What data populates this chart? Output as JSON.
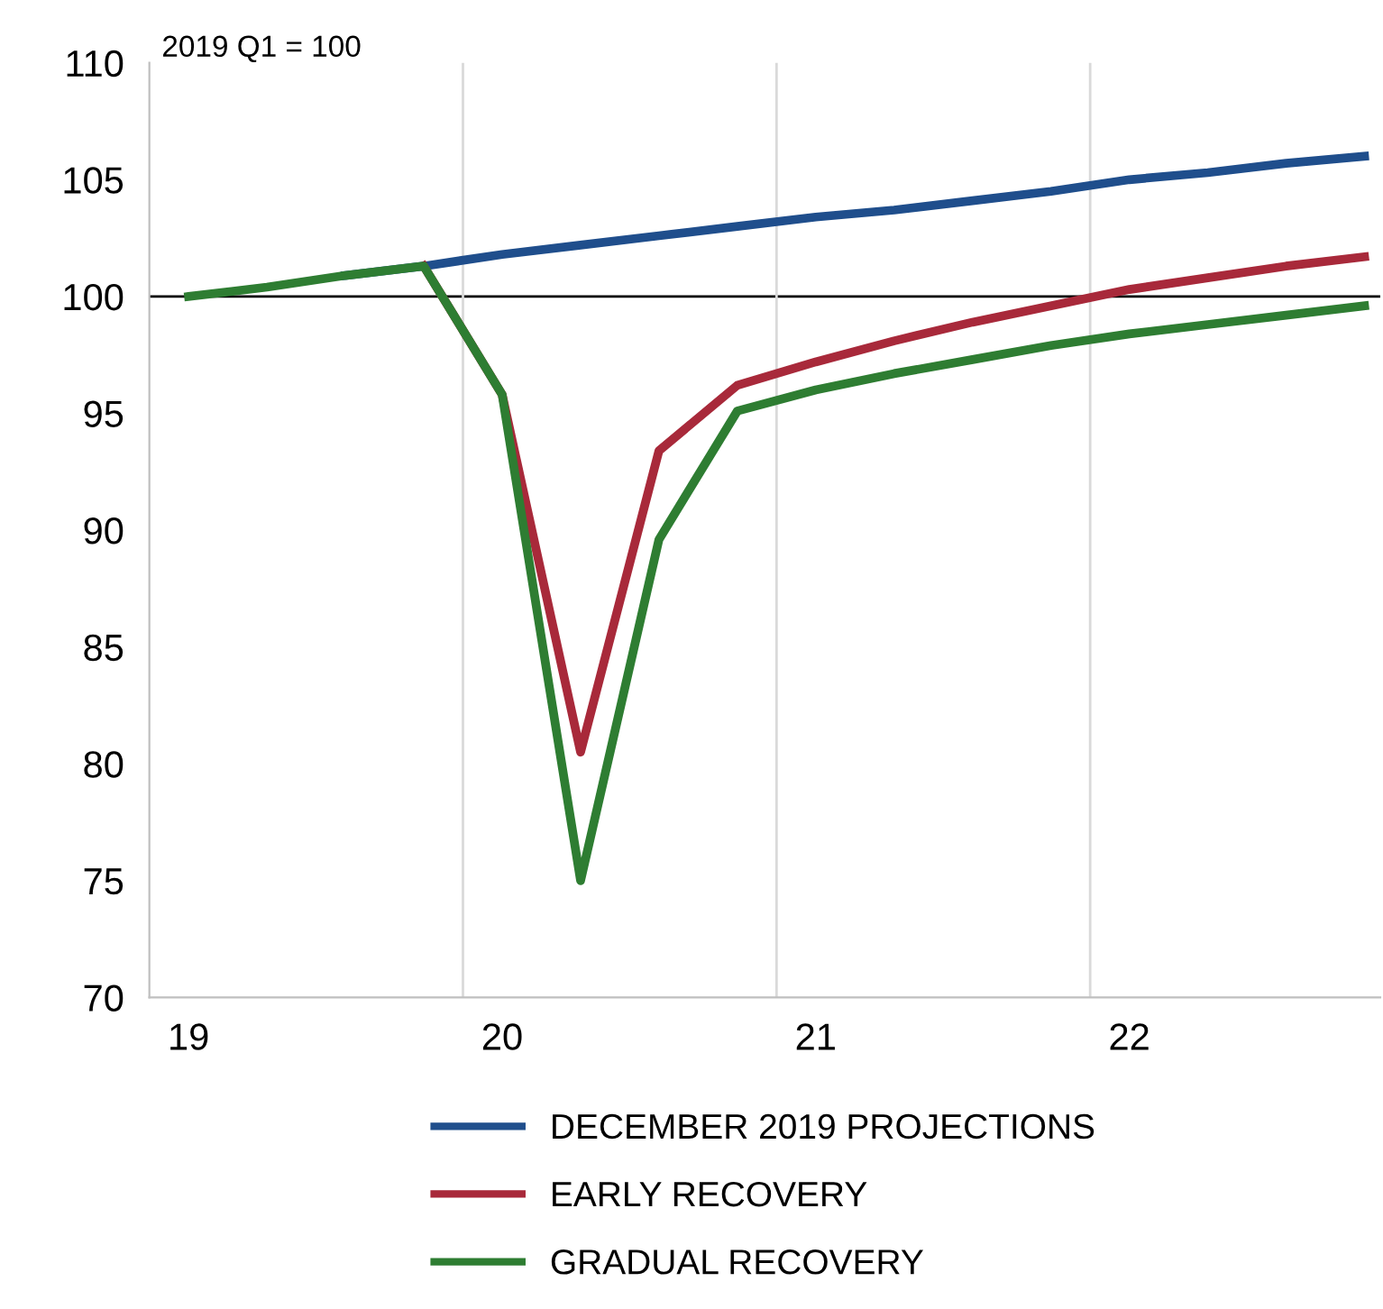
{
  "chart_data": {
    "type": "line",
    "x": [
      19.0,
      19.25,
      19.5,
      19.75,
      20.0,
      20.25,
      20.5,
      20.75,
      21.0,
      21.25,
      21.5,
      21.75,
      22.0,
      22.25,
      22.5,
      22.75
    ],
    "series": [
      {
        "name": "DECEMBER 2019 PROJECTIONS",
        "color": "#1f4e8c",
        "values": [
          null,
          null,
          100.9,
          101.3,
          101.8,
          102.2,
          102.6,
          103.0,
          103.4,
          103.7,
          104.1,
          104.5,
          105.0,
          105.3,
          105.7,
          106.0
        ]
      },
      {
        "name": "EARLY RECOVERY",
        "color": "#a8293a",
        "values": [
          null,
          null,
          null,
          101.3,
          95.8,
          80.5,
          93.4,
          96.2,
          97.2,
          98.1,
          98.9,
          99.6,
          100.3,
          100.8,
          101.3,
          101.7
        ]
      },
      {
        "name": "GRADUAL RECOVERY",
        "color": "#2e7d32",
        "values": [
          100,
          100.4,
          100.9,
          101.3,
          95.8,
          75.0,
          89.6,
          95.1,
          96.0,
          96.7,
          97.3,
          97.9,
          98.4,
          98.8,
          99.2,
          99.6
        ]
      }
    ],
    "xlim": [
      18.875,
      22.8
    ],
    "xticks": [
      19,
      20,
      21,
      22
    ],
    "ylim": [
      70,
      110
    ],
    "yticks": [
      70,
      75,
      80,
      85,
      90,
      95,
      100,
      105,
      110
    ],
    "ref_lines": [
      {
        "axis": "y",
        "value": 100,
        "color": "#000000"
      },
      {
        "axis": "x",
        "value": 19.875,
        "color": "#d9d9d9"
      },
      {
        "axis": "x",
        "value": 20.875,
        "color": "#d9d9d9"
      },
      {
        "axis": "x",
        "value": 21.875,
        "color": "#d9d9d9"
      }
    ],
    "annotations": [
      "2019 Q1 = 100"
    ],
    "legend": "bottom",
    "grid": false
  }
}
